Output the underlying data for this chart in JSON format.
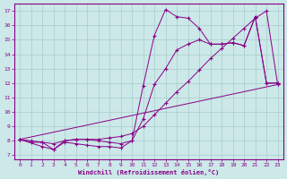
{
  "xlabel": "Windchill (Refroidissement éolien,°C)",
  "xlim": [
    -0.5,
    23.5
  ],
  "ylim": [
    6.7,
    17.5
  ],
  "xticks": [
    0,
    1,
    2,
    3,
    4,
    5,
    6,
    7,
    8,
    9,
    10,
    11,
    12,
    13,
    14,
    15,
    16,
    17,
    18,
    19,
    20,
    21,
    22,
    23
  ],
  "yticks": [
    7,
    8,
    9,
    10,
    11,
    12,
    13,
    14,
    15,
    16,
    17
  ],
  "bg_color": "#cce8e8",
  "line_color": "#880088",
  "grid_color": "#a8cccc",
  "curve1_x": [
    0,
    1,
    2,
    3,
    4,
    5,
    6,
    7,
    8,
    9,
    10,
    11,
    12,
    13,
    14,
    15,
    16,
    17,
    18,
    19,
    20,
    21,
    22,
    23
  ],
  "curve1_y": [
    8.1,
    7.9,
    7.9,
    7.4,
    7.9,
    7.8,
    7.7,
    7.6,
    7.6,
    7.5,
    8.0,
    11.8,
    15.3,
    17.1,
    16.6,
    16.5,
    15.8,
    14.7,
    14.7,
    14.8,
    14.6,
    16.6,
    12.0,
    12.0
  ],
  "curve2_x": [
    0,
    23
  ],
  "curve2_y": [
    8.1,
    11.9
  ],
  "curve3_x": [
    0,
    1,
    2,
    3,
    4,
    5,
    6,
    7,
    8,
    9,
    10,
    11,
    12,
    13,
    14,
    15,
    16,
    17,
    18,
    19,
    20,
    21,
    22,
    23
  ],
  "curve3_y": [
    8.1,
    8.0,
    7.9,
    7.8,
    8.0,
    8.1,
    8.1,
    8.1,
    8.2,
    8.3,
    8.5,
    9.0,
    9.8,
    10.6,
    11.4,
    12.1,
    12.9,
    13.7,
    14.4,
    15.1,
    15.8,
    16.5,
    17.0,
    11.9
  ],
  "curve4_x": [
    0,
    2,
    3,
    4,
    5,
    6,
    7,
    8,
    9,
    10,
    11,
    12,
    13,
    14,
    15,
    16,
    17,
    18,
    19,
    20,
    21,
    22,
    23
  ],
  "curve4_y": [
    8.1,
    7.6,
    7.4,
    8.0,
    8.1,
    8.1,
    8.0,
    7.9,
    7.8,
    8.0,
    9.5,
    11.9,
    13.0,
    14.3,
    14.7,
    15.0,
    14.7,
    14.7,
    14.8,
    14.6,
    16.6,
    12.0,
    12.0
  ]
}
